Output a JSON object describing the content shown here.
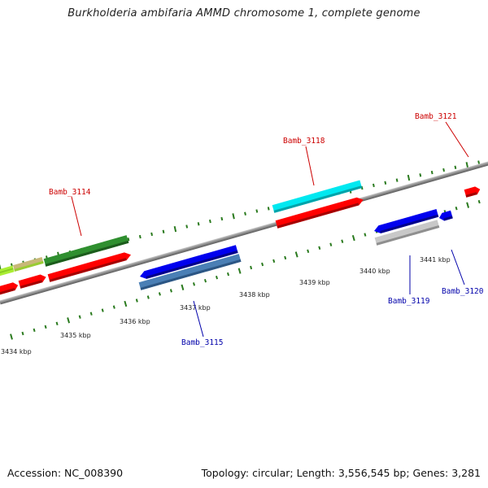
{
  "title": "Burkholderia ambifaria AMMD chromosome 1, complete genome",
  "footer": {
    "accession": "Accession: NC_008390",
    "summary": "Topology: circular; Length: 3,556,545 bp; Genes: 3,281"
  },
  "ticks": [
    {
      "label": "3434 kbp"
    },
    {
      "label": "3435 kbp"
    },
    {
      "label": "3436 kbp"
    },
    {
      "label": "3437 kbp"
    },
    {
      "label": "3438 kbp"
    },
    {
      "label": "3439 kbp"
    },
    {
      "label": "3440 kbp"
    },
    {
      "label": "3441 kbp"
    }
  ],
  "gene_labels": [
    {
      "name": "Bamb_3114",
      "color": "#cc0000"
    },
    {
      "name": "Bamb_3115",
      "color": "#0000aa"
    },
    {
      "name": "Bamb_3118",
      "color": "#cc0000"
    },
    {
      "name": "Bamb_3119",
      "color": "#0000aa"
    },
    {
      "name": "Bamb_3120",
      "color": "#0000aa"
    },
    {
      "name": "Bamb_3121",
      "color": "#cc0000"
    }
  ],
  "colors": {
    "backbone": "#8c8c8c",
    "tick_marks": "#2a7a1e",
    "forward_strand_gene": "#ff0000",
    "reverse_strand_gene": "#0000ee",
    "highlight_cyan": "#00e5ee",
    "highlight_green": "#2a8a2a",
    "highlight_steelblue": "#4a7fb5",
    "highlight_grey": "#c4c4c4"
  }
}
